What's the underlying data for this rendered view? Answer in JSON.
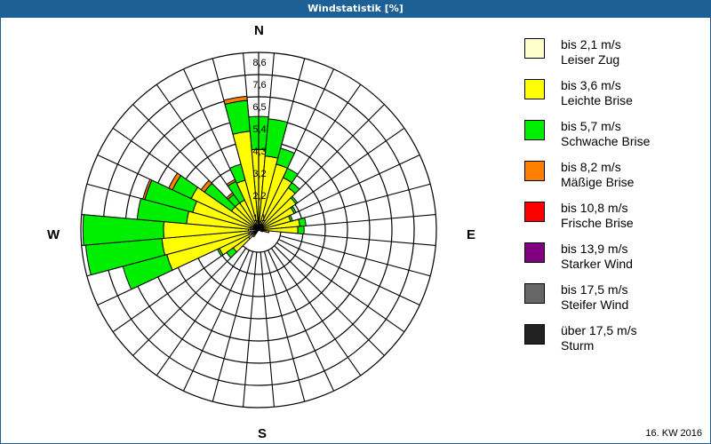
{
  "window": {
    "title": "Windstatistik [%]"
  },
  "footer": {
    "week": "16. KW 2016"
  },
  "compass": {
    "n": "N",
    "e": "E",
    "s": "S",
    "w": "W"
  },
  "legend": {
    "items": [
      {
        "line1": "bis 2,1 m/s",
        "line2": "Leiser Zug",
        "color": "#ffffcc"
      },
      {
        "line1": "bis 3,6 m/s",
        "line2": "Leichte Brise",
        "color": "#ffff00"
      },
      {
        "line1": "bis 5,7 m/s",
        "line2": "Schwache Brise",
        "color": "#00ee00"
      },
      {
        "line1": "bis 8,2 m/s",
        "line2": "Mäßige Brise",
        "color": "#ff8000"
      },
      {
        "line1": "bis 10,8 m/s",
        "line2": "Frische Brise",
        "color": "#ff0000"
      },
      {
        "line1": "bis 13,9 m/s",
        "line2": "Starker Wind",
        "color": "#800080"
      },
      {
        "line1": "bis 17,5 m/s",
        "line2": "Steifer Wind",
        "color": "#666666"
      },
      {
        "line1": "über 17,5 m/s",
        "line2": "Sturm",
        "color": "#222222"
      }
    ]
  },
  "chart_data": {
    "type": "wind-rose",
    "title": "Windstatistik [%]",
    "subtitle": "16. KW 2016",
    "radial_axis": {
      "unit": "%",
      "ticks": [
        "1,1",
        "2,2",
        "3,2",
        "4,3",
        "5,4",
        "6,5",
        "7,6",
        "8,6"
      ],
      "max": 8.6
    },
    "direction_step_deg": 10,
    "series_names": [
      "Leiser Zug",
      "Leichte Brise",
      "Schwache Brise",
      "Mäßige Brise"
    ],
    "directions_deg": [
      0,
      10,
      20,
      30,
      40,
      50,
      60,
      70,
      80,
      90,
      100,
      110,
      120,
      130,
      140,
      150,
      160,
      170,
      180,
      190,
      200,
      210,
      220,
      230,
      240,
      250,
      260,
      270,
      280,
      290,
      300,
      310,
      320,
      330,
      340,
      350
    ],
    "cumulative_percent": [
      [
        0.4,
        3.9,
        5.5,
        5.5
      ],
      [
        0.4,
        3.6,
        5.4,
        5.4
      ],
      [
        0.3,
        3.3,
        4.1,
        4.1
      ],
      [
        0.3,
        2.8,
        3.3,
        3.3
      ],
      [
        0.3,
        2.5,
        2.8,
        2.8
      ],
      [
        0.2,
        2.2,
        2.3,
        2.3
      ],
      [
        0.2,
        1.9,
        2.0,
        2.0
      ],
      [
        0.2,
        1.6,
        1.7,
        1.7
      ],
      [
        0.2,
        2.0,
        2.3,
        2.3
      ],
      [
        0.2,
        1.9,
        2.2,
        2.2
      ],
      [
        0.1,
        0.5,
        0.5,
        0.5
      ],
      [
        0.1,
        0.2,
        0.2,
        0.2
      ],
      [
        0.0,
        0.0,
        0.0,
        0.0
      ],
      [
        0.0,
        0.0,
        0.0,
        0.0
      ],
      [
        0.0,
        0.0,
        0.0,
        0.0
      ],
      [
        0.0,
        0.0,
        0.0,
        0.0
      ],
      [
        0.0,
        0.0,
        0.0,
        0.0
      ],
      [
        0.0,
        0.0,
        0.0,
        0.0
      ],
      [
        0.0,
        0.0,
        0.0,
        0.0
      ],
      [
        0.0,
        0.0,
        0.0,
        0.0
      ],
      [
        0.0,
        0.0,
        0.0,
        0.0
      ],
      [
        0.0,
        0.0,
        0.0,
        0.0
      ],
      [
        0.1,
        0.4,
        0.4,
        0.4
      ],
      [
        0.6,
        1.5,
        1.9,
        1.9
      ],
      [
        0.4,
        2.1,
        2.2,
        2.2
      ],
      [
        0.5,
        4.6,
        6.8,
        6.8
      ],
      [
        0.4,
        4.7,
        8.4,
        8.4
      ],
      [
        0.5,
        4.6,
        8.5,
        8.5
      ],
      [
        0.4,
        3.5,
        5.9,
        5.9
      ],
      [
        0.4,
        3.3,
        5.7,
        5.8
      ],
      [
        0.3,
        3.6,
        4.6,
        4.8
      ],
      [
        0.3,
        1.6,
        3.2,
        3.4
      ],
      [
        0.3,
        1.6,
        2.1,
        2.2
      ],
      [
        0.3,
        1.6,
        2.6,
        2.7
      ],
      [
        0.3,
        2.5,
        3.3,
        3.3
      ],
      [
        0.4,
        4.8,
        6.3,
        6.5
      ]
    ],
    "grid": true,
    "legend_position": "right"
  }
}
